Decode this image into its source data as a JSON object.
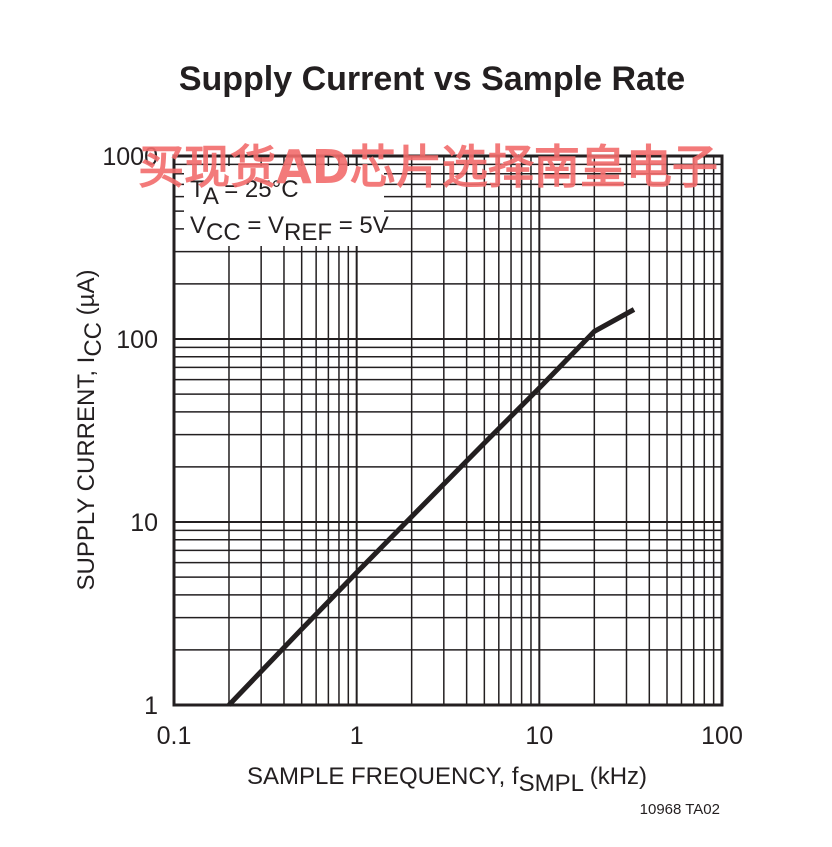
{
  "chart_data": {
    "type": "line",
    "title": "Supply Current vs Sample Rate",
    "xlabel": {
      "main": "SAMPLE FREQUENCY, f",
      "sub": "SMPL",
      "unit": " (kHz)"
    },
    "ylabel": {
      "main": "SUPPLY CURRENT, I",
      "sub": "CC",
      "unit": " (µA)"
    },
    "x_scale": "log",
    "y_scale": "log",
    "xlim": [
      0.1,
      100
    ],
    "ylim": [
      1,
      1000
    ],
    "grid": true,
    "x_ticks": [
      "0.1",
      "1",
      "10",
      "100"
    ],
    "y_ticks": [
      "1",
      "10",
      "100",
      "1000"
    ],
    "series": [
      {
        "x": [
          0.2,
          0.5,
          1,
          2,
          5,
          10,
          20,
          33
        ],
        "y": [
          1,
          2.6,
          5.3,
          10.7,
          27,
          54,
          110,
          145
        ],
        "color": "#231f20"
      }
    ],
    "annotations": [
      {
        "parts": [
          {
            "t": "T"
          },
          {
            "t": "A",
            "sub": true
          },
          {
            "t": " = 25°C"
          }
        ]
      },
      {
        "parts": [
          {
            "t": "V"
          },
          {
            "t": "CC",
            "sub": true
          },
          {
            "t": " = V"
          },
          {
            "t": "REF",
            "sub": true
          },
          {
            "t": " = 5V"
          }
        ]
      }
    ],
    "figure_code": "10968 TA02"
  },
  "watermark": "买现货AD芯片选择南皇电子",
  "colors": {
    "ink": "#231f20",
    "watermark": "#f26b6b"
  }
}
